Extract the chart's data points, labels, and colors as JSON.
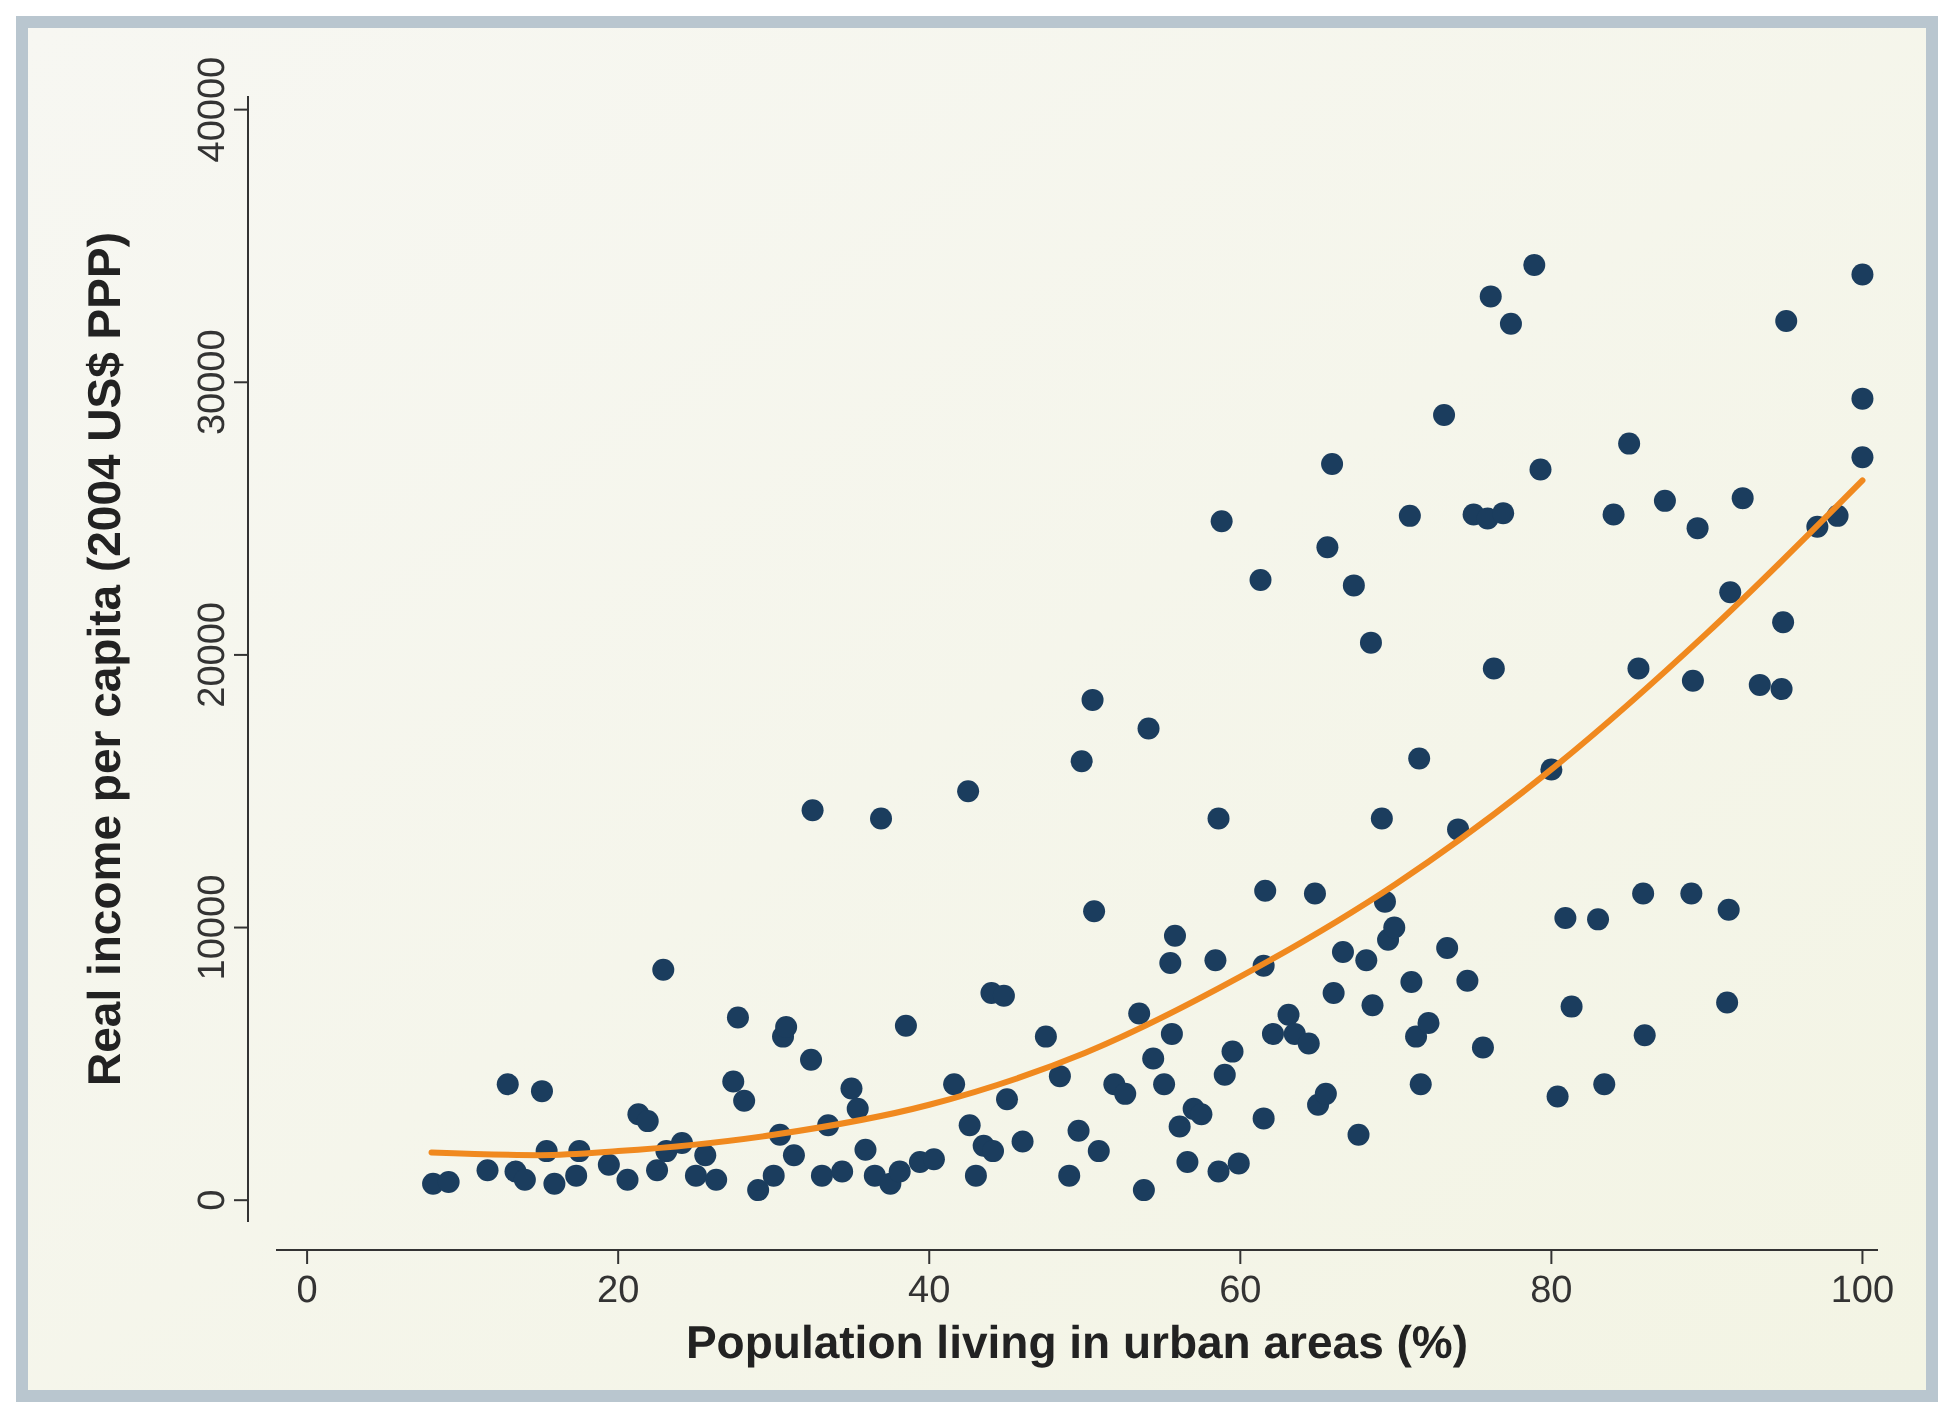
{
  "chart_data": {
    "type": "scatter",
    "xlabel": "Population living in urban areas (%)",
    "ylabel": "Real income per capita (2004 US$ PPP)",
    "xlim": [
      -2,
      101
    ],
    "ylim": [
      -800,
      40500
    ],
    "xticks": [
      0,
      20,
      40,
      60,
      80,
      100
    ],
    "yticks": [
      0,
      10000,
      20000,
      30000,
      40000
    ],
    "grid": false,
    "marker": "circle",
    "series": [
      {
        "type": "scatter",
        "color": "#1b3d5e",
        "x": [
          8.1,
          9.1,
          11.6,
          12.9,
          13.4,
          14,
          15.1,
          15.4,
          15.9,
          17.3,
          17.5,
          19.4,
          20.6,
          21.3,
          21.9,
          22.9,
          22.5,
          23.1,
          24.1,
          25,
          25.6,
          26.3,
          27.4,
          27.7,
          28.1,
          29,
          30,
          30.4,
          30.6,
          30.8,
          31.3,
          32.4,
          32.5,
          33.1,
          33.5,
          34.4,
          35,
          35.4,
          35.9,
          36.5,
          36.9,
          37.5,
          38.1,
          38.5,
          39.4,
          40.3,
          41.6,
          42.5,
          42.6,
          43,
          43.5,
          44,
          44.8,
          44.1,
          45,
          46,
          47.5,
          48.4,
          49,
          49.6,
          49.8,
          50.5,
          50.6,
          50.9,
          51.9,
          52.6,
          53.5,
          53.8,
          54.1,
          54.4,
          55.1,
          55.8,
          55.5,
          55.6,
          56.1,
          56.6,
          57,
          57.5,
          58.4,
          58.8,
          58.6,
          58.6,
          59,
          59.5,
          59.9,
          61.3,
          61.6,
          61.5,
          61.5,
          62.1,
          63.1,
          63.5,
          64.4,
          64.8,
          65,
          65.6,
          65.9,
          65.5,
          66,
          66.6,
          67.3,
          67.6,
          68.1,
          68.4,
          68.5,
          69.1,
          69.3,
          69.5,
          69.9,
          70.9,
          71,
          71.3,
          71.5,
          71.6,
          72.1,
          73.1,
          73.3,
          74,
          74.6,
          75,
          75.6,
          75.9,
          76.1,
          76.3,
          76.9,
          77.4,
          78.9,
          79.3,
          80,
          80.9,
          80.4,
          81.3,
          83,
          83.4,
          84,
          85,
          85.6,
          85.9,
          86,
          87.3,
          89,
          89.1,
          89.4,
          91.3,
          91.4,
          91.5,
          92.3,
          93.4,
          94.8,
          94.9,
          95.1,
          97.1,
          98.4,
          100,
          100,
          100
        ],
        "values": [
          600,
          670,
          1100,
          4250,
          1050,
          750,
          4000,
          1800,
          600,
          900,
          1800,
          1300,
          750,
          3150,
          2900,
          8450,
          1100,
          1800,
          2100,
          900,
          1650,
          750,
          4350,
          6700,
          3650,
          370,
          900,
          2400,
          6000,
          6350,
          1650,
          5150,
          14300,
          900,
          2750,
          1050,
          4100,
          3350,
          1850,
          900,
          14000,
          600,
          1050,
          6400,
          1400,
          1500,
          4250,
          15000,
          2750,
          900,
          2000,
          7600,
          7500,
          1800,
          3700,
          2150,
          6000,
          4550,
          900,
          2550,
          16100,
          18350,
          10600,
          1800,
          4250,
          3900,
          6850,
          370,
          17300,
          5200,
          4250,
          9700,
          8700,
          6100,
          2700,
          1400,
          3350,
          3150,
          8800,
          24900,
          14000,
          1050,
          4600,
          5450,
          1350,
          22750,
          11350,
          8600,
          3000,
          6100,
          6800,
          6100,
          5750,
          11250,
          3500,
          23950,
          27000,
          3900,
          7600,
          9100,
          22550,
          2400,
          8800,
          20450,
          7150,
          14000,
          10950,
          9550,
          10000,
          25100,
          8000,
          6000,
          16200,
          4250,
          6500,
          28800,
          9250,
          13600,
          8050,
          25150,
          5600,
          25000,
          33150,
          19500,
          25200,
          32150,
          34300,
          26800,
          15800,
          10350,
          3800,
          7100,
          10300,
          4250,
          25150,
          27750,
          19500,
          11250,
          6050,
          25650,
          11250,
          19050,
          24650,
          7250,
          10650,
          22300,
          25750,
          18900,
          18750,
          21200,
          32250,
          24700,
          25100,
          33950,
          29400,
          27250
        ]
      },
      {
        "type": "line",
        "color": "#f0891f",
        "marker": "none",
        "x": [
          8,
          15,
          20,
          30,
          40,
          50,
          60,
          70,
          80,
          90,
          100
        ],
        "values": [
          1750,
          1650,
          1800,
          2400,
          3500,
          5400,
          8200,
          11600,
          15800,
          20800,
          26400
        ]
      }
    ]
  }
}
